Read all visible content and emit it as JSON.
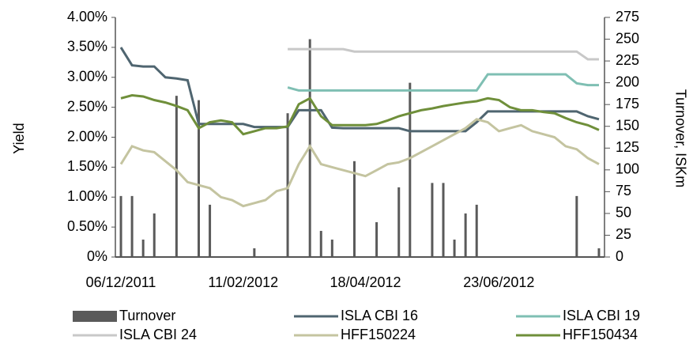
{
  "chart_data": {
    "type": "bar-line",
    "y_label": "Yield",
    "y2_label": "Turnover, ISKm",
    "categories": [
      "06/12/2011",
      null,
      null,
      null,
      null,
      null,
      null,
      null,
      null,
      null,
      null,
      "11/02/2012",
      null,
      null,
      null,
      null,
      null,
      null,
      null,
      null,
      null,
      null,
      "18/04/2012",
      null,
      null,
      null,
      null,
      null,
      null,
      null,
      null,
      null,
      null,
      null,
      "23/06/2012",
      null,
      null,
      null,
      null,
      null,
      null,
      null,
      null,
      null
    ],
    "ylim": [
      0,
      4
    ],
    "yticks": [
      {
        "value": 0,
        "label": "0%"
      },
      {
        "value": 0.5,
        "label": "0.50%"
      },
      {
        "value": 1,
        "label": "1.00%"
      },
      {
        "value": 1.5,
        "label": "1.50%"
      },
      {
        "value": 2,
        "label": "2.00%"
      },
      {
        "value": 2.5,
        "label": "2.50%"
      },
      {
        "value": 3,
        "label": "3.00%"
      },
      {
        "value": 3.5,
        "label": "3.50%"
      },
      {
        "value": 4,
        "label": "4.00%"
      }
    ],
    "y2lim": [
      0,
      275
    ],
    "y2ticks": [
      0,
      25,
      50,
      75,
      100,
      125,
      150,
      175,
      200,
      225,
      250,
      275
    ],
    "series": [
      {
        "name": "Turnover",
        "type": "bar",
        "axis": "y2",
        "color": "#5a5a5a",
        "values": [
          70,
          70,
          20,
          50,
          0,
          185,
          0,
          180,
          60,
          0,
          0,
          0,
          10,
          0,
          0,
          165,
          0,
          250,
          30,
          20,
          0,
          110,
          0,
          40,
          0,
          80,
          200,
          0,
          85,
          85,
          20,
          50,
          60,
          0,
          0,
          0,
          0,
          0,
          0,
          0,
          0,
          70,
          0,
          10
        ]
      },
      {
        "name": "ISLA CBI 16",
        "type": "line",
        "color": "#4f6570",
        "values": [
          3.5,
          3.2,
          3.18,
          3.18,
          3.0,
          2.98,
          2.95,
          2.22,
          2.22,
          2.22,
          2.22,
          2.22,
          2.17,
          2.17,
          2.17,
          2.17,
          2.45,
          2.45,
          2.45,
          2.16,
          2.15,
          2.15,
          2.15,
          2.15,
          2.15,
          2.15,
          2.1,
          2.1,
          2.1,
          2.1,
          2.1,
          2.1,
          2.25,
          2.43,
          2.43,
          2.43,
          2.43,
          2.43,
          2.43,
          2.43,
          2.43,
          2.43,
          2.35,
          2.3
        ]
      },
      {
        "name": "ISLA CBI 19",
        "type": "line",
        "color": "#7fbfb3",
        "values": [
          null,
          null,
          null,
          null,
          null,
          null,
          null,
          null,
          null,
          null,
          null,
          null,
          null,
          null,
          null,
          2.83,
          2.78,
          2.78,
          2.78,
          2.78,
          2.78,
          2.78,
          2.78,
          2.78,
          2.78,
          2.78,
          2.78,
          2.78,
          2.78,
          2.78,
          2.78,
          2.78,
          2.78,
          3.05,
          3.05,
          3.05,
          3.05,
          3.05,
          3.05,
          3.05,
          3.05,
          2.9,
          2.87,
          2.87
        ]
      },
      {
        "name": "ISLA CBI 24",
        "type": "line",
        "color": "#c8c8c8",
        "values": [
          null,
          null,
          null,
          null,
          null,
          null,
          null,
          null,
          null,
          null,
          null,
          null,
          null,
          null,
          null,
          3.47,
          3.47,
          3.47,
          3.47,
          3.47,
          3.47,
          3.43,
          3.43,
          3.43,
          3.43,
          3.43,
          3.43,
          3.43,
          3.43,
          3.43,
          3.43,
          3.43,
          3.43,
          3.43,
          3.43,
          3.43,
          3.43,
          3.43,
          3.43,
          3.43,
          3.43,
          3.43,
          3.3,
          3.3
        ]
      },
      {
        "name": "HFF150224",
        "type": "line",
        "color": "#c4c4a0",
        "values": [
          1.55,
          1.85,
          1.78,
          1.75,
          1.6,
          1.45,
          1.25,
          1.2,
          1.15,
          1.0,
          0.95,
          0.85,
          0.9,
          0.95,
          1.1,
          1.15,
          1.55,
          1.85,
          1.55,
          1.5,
          1.45,
          1.4,
          1.35,
          1.45,
          1.55,
          1.58,
          1.65,
          1.75,
          1.85,
          1.95,
          2.05,
          2.15,
          2.3,
          2.25,
          2.1,
          2.15,
          2.2,
          2.1,
          2.05,
          2.0,
          1.85,
          1.8,
          1.65,
          1.55
        ]
      },
      {
        "name": "HFF150434",
        "type": "line",
        "color": "#6f8f3a",
        "values": [
          2.65,
          2.7,
          2.68,
          2.62,
          2.58,
          2.52,
          2.45,
          2.15,
          2.25,
          2.28,
          2.25,
          2.05,
          2.1,
          2.15,
          2.15,
          2.18,
          2.55,
          2.65,
          2.35,
          2.2,
          2.2,
          2.2,
          2.2,
          2.22,
          2.28,
          2.35,
          2.4,
          2.45,
          2.48,
          2.52,
          2.55,
          2.58,
          2.6,
          2.65,
          2.62,
          2.5,
          2.45,
          2.45,
          2.42,
          2.4,
          2.32,
          2.25,
          2.2,
          2.12
        ]
      }
    ]
  }
}
